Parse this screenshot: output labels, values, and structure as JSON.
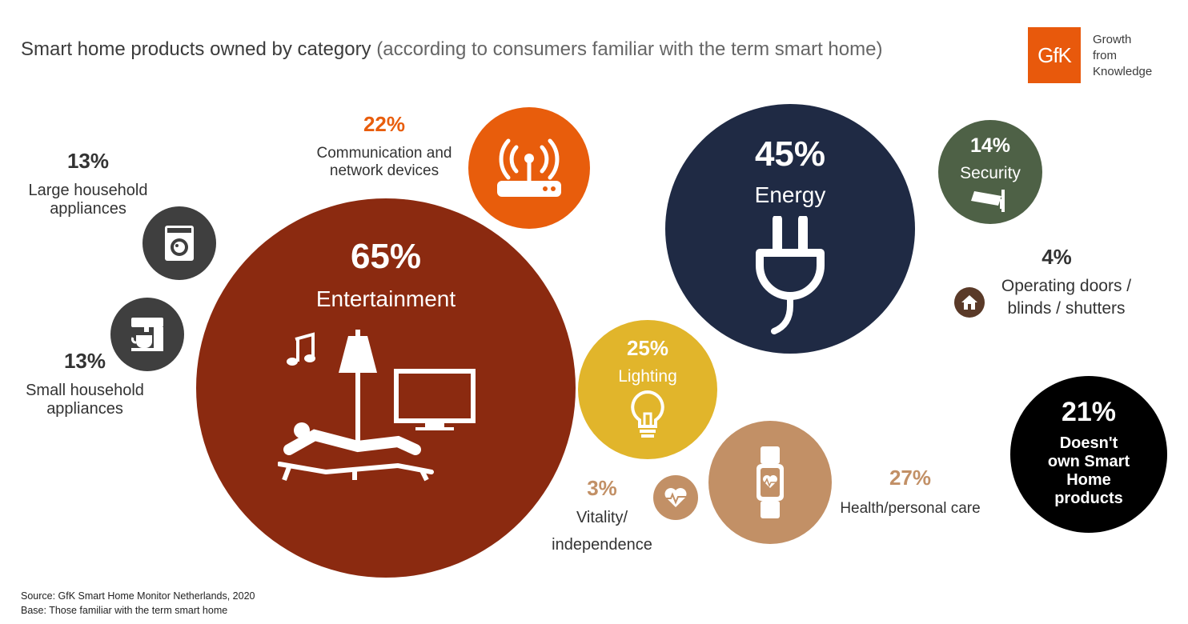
{
  "header": {
    "title": "Smart home products owned by category",
    "subtitle": "(according to consumers familiar with the term smart home)"
  },
  "logo": {
    "mark": "GfK",
    "tagline_line1": "Growth",
    "tagline_line2": "from",
    "tagline_line3": "Knowledge",
    "color": "#e8590c"
  },
  "colors": {
    "entertainment": "#8b2a10",
    "communication": "#e85d0c",
    "energy": "#1f2a44",
    "security": "#4e6146",
    "lighting": "#e1b52b",
    "health": "#c29066",
    "doesnt_own": "#000000",
    "small_icon": "#3f3f3f",
    "door_icon": "#5a3a28"
  },
  "chart_data": {
    "type": "bubble",
    "title": "Smart home products owned by category",
    "subtitle": "(according to consumers familiar with the term smart home)",
    "unit": "%",
    "items": [
      {
        "label": "Entertainment",
        "value": 65,
        "display": "65%",
        "icon": "lounge-chair-tv-icon"
      },
      {
        "label": "Energy",
        "value": 45,
        "display": "45%",
        "icon": "plug-icon"
      },
      {
        "label": "Health/personal care",
        "value": 27,
        "display": "27%",
        "icon": "smartwatch-icon"
      },
      {
        "label": "Lighting",
        "value": 25,
        "display": "25%",
        "icon": "lightbulb-icon"
      },
      {
        "label": "Communication and network devices",
        "value": 22,
        "display": "22%",
        "icon": "router-icon"
      },
      {
        "label": "Doesn't own Smart Home products",
        "value": 21,
        "display": "21%",
        "icon": ""
      },
      {
        "label": "Security",
        "value": 14,
        "display": "14%",
        "icon": "security-camera-icon"
      },
      {
        "label": "Large household appliances",
        "value": 13,
        "display": "13%",
        "icon": "washing-machine-icon"
      },
      {
        "label": "Small household appliances",
        "value": 13,
        "display": "13%",
        "icon": "coffee-machine-icon"
      },
      {
        "label": "Operating doors / blinds / shutters",
        "value": 4,
        "display": "4%",
        "icon": "house-icon"
      },
      {
        "label": "Vitality/ independence",
        "value": 3,
        "display": "3%",
        "icon": "heart-pulse-icon"
      }
    ]
  },
  "labels": {
    "entertainment": {
      "pct": "65%",
      "name": "Entertainment"
    },
    "energy": {
      "pct": "45%",
      "name": "Energy"
    },
    "security": {
      "pct": "14%",
      "name": "Security"
    },
    "lighting": {
      "pct": "25%",
      "name": "Lighting"
    },
    "doesnt_own": {
      "pct": "21%",
      "line1": "Doesn't",
      "line2": "own Smart",
      "line3": "Home",
      "line4": "products"
    },
    "communication": {
      "pct": "22%",
      "line1": "Communication and",
      "line2": "network devices"
    },
    "large_appliances": {
      "pct": "13%",
      "line1": "Large household",
      "line2": "appliances"
    },
    "small_appliances": {
      "pct": "13%",
      "line1": "Small household",
      "line2": "appliances"
    },
    "doors": {
      "pct": "4%",
      "line1": "Operating doors /",
      "line2": "blinds / shutters"
    },
    "vitality": {
      "pct": "3%",
      "line1": "Vitality/",
      "line2": "independence"
    },
    "health": {
      "pct": "27%",
      "name": "Health/personal care"
    }
  },
  "footer": {
    "source": "Source: GfK Smart Home Monitor Netherlands, 2020",
    "base": "Base: Those familiar with the term smart home"
  }
}
